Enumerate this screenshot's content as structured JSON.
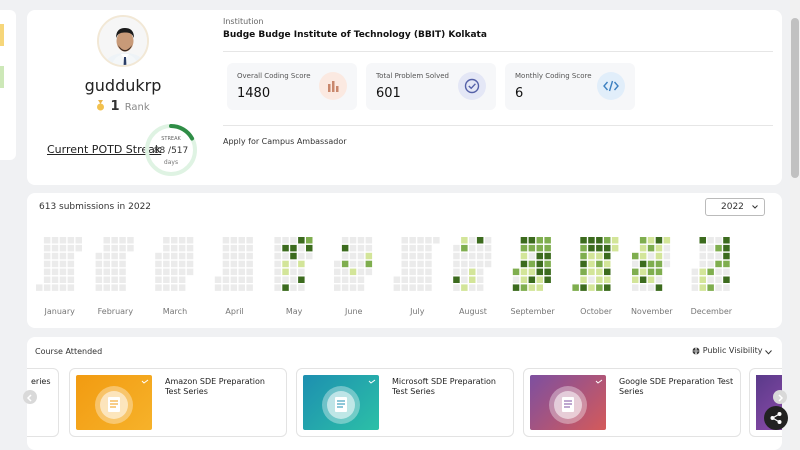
{
  "profile": {
    "username": "guddukrp",
    "rank_value": "1",
    "rank_label": "Rank",
    "potd_label": "Current POTD Streak",
    "streak_label": "STREAK",
    "streak_value": "88 /517",
    "streak_unit": "days",
    "streak_fraction": 0.17
  },
  "institution": {
    "label": "Institution",
    "name": "Budge Budge Institute of Technology (BBIT) Kolkata"
  },
  "stats": [
    {
      "label": "Overall Coding Score",
      "value": "1480",
      "icon": "bar-chart-icon",
      "icon_bg": "#fbe9e1",
      "icon_color": "#c9876c"
    },
    {
      "label": "Total Problem Solved",
      "value": "601",
      "icon": "check-circle-icon",
      "icon_bg": "#e4e7f6",
      "icon_color": "#5561a8"
    },
    {
      "label": "Monthly Coding Score",
      "value": "6",
      "icon": "code-icon",
      "icon_bg": "#e1eefa",
      "icon_color": "#3d80c0"
    }
  ],
  "ambassador_label": "Apply for Campus Ambassador",
  "heatmap": {
    "submissions_text": "613 submissions in 2022",
    "year": "2022",
    "months": [
      "January",
      "February",
      "March",
      "April",
      "May",
      "June",
      "July",
      "August",
      "September",
      "October",
      "November",
      "December"
    ],
    "colors": {
      "empty": "#ebebeb",
      "light": "#d3e599",
      "medium": "#7fae4f",
      "dark": "#3c6b1e"
    }
  },
  "courses": {
    "title": "Course Attended",
    "visibility_label": "Public Visibility",
    "partial_left_label": "eries",
    "items": [
      {
        "name": "Amazon SDE Preparation Test Series",
        "color_a": "#f29b11",
        "color_b": "#f6b22a"
      },
      {
        "name": "Microsoft SDE Preparation Test Series",
        "color_a": "#1d8fb0",
        "color_b": "#2cc0a7"
      },
      {
        "name": "Google SDE Preparation Test Series",
        "color_a": "#7d4fa0",
        "color_b": "#d45a5a"
      }
    ]
  }
}
